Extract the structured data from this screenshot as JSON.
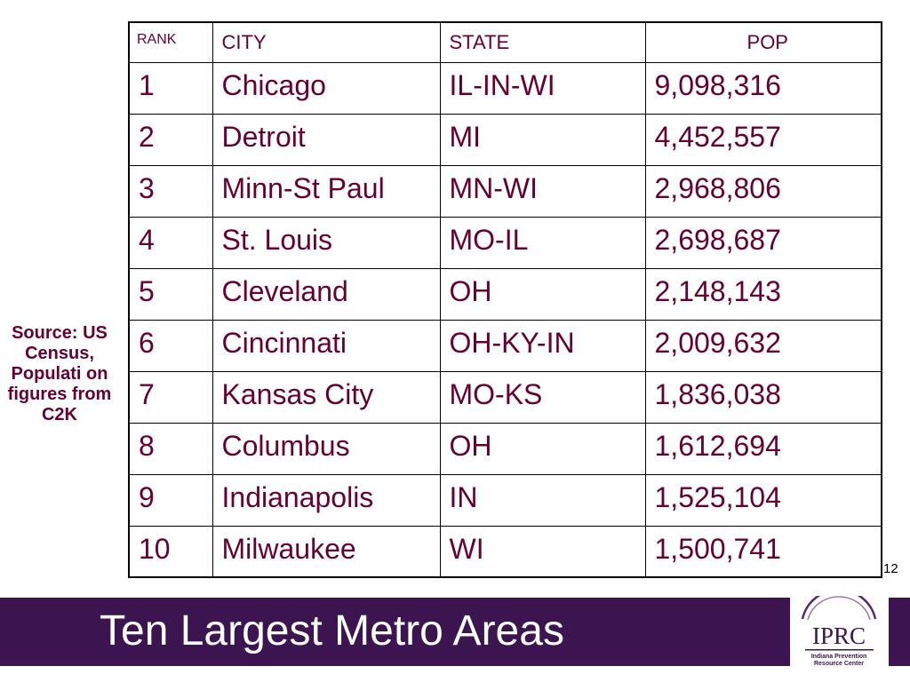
{
  "slide": {
    "title": "Ten Largest Metro Areas",
    "page_number": "12",
    "source_note": "Source: US Census, Populati on figures from C2K"
  },
  "table": {
    "headers": {
      "rank": "RANK",
      "city": "CITY",
      "state": "STATE",
      "pop": "POP"
    },
    "rows": [
      {
        "rank": "1",
        "city": "Chicago",
        "state": "IL-IN-WI",
        "pop": "9,098,316"
      },
      {
        "rank": "2",
        "city": "Detroit",
        "state": "MI",
        "pop": "4,452,557"
      },
      {
        "rank": "3",
        "city": "Minn-St Paul",
        "state": "MN-WI",
        "pop": "2,968,806"
      },
      {
        "rank": "4",
        "city": "St. Louis",
        "state": "MO-IL",
        "pop": "2,698,687"
      },
      {
        "rank": "5",
        "city": "Cleveland",
        "state": "OH",
        "pop": "2,148,143"
      },
      {
        "rank": "6",
        "city": "Cincinnati",
        "state": "OH-KY-IN",
        "pop": "2,009,632"
      },
      {
        "rank": "7",
        "city": "Kansas City",
        "state": "MO-KS",
        "pop": "1,836,038"
      },
      {
        "rank": "8",
        "city": "Columbus",
        "state": "OH",
        "pop": "1,612,694"
      },
      {
        "rank": "9",
        "city": "Indianapolis",
        "state": "IN",
        "pop": "1,525,104"
      },
      {
        "rank": "10",
        "city": "Milwaukee",
        "state": "WI",
        "pop": "1,500,741"
      }
    ]
  },
  "logo": {
    "acronym": "IPRC",
    "line1": "Indiana Prevention",
    "line2": "Resource Center"
  },
  "colors": {
    "text": "#660033",
    "footer_bar": "#3b1450",
    "title": "#ffffff"
  }
}
